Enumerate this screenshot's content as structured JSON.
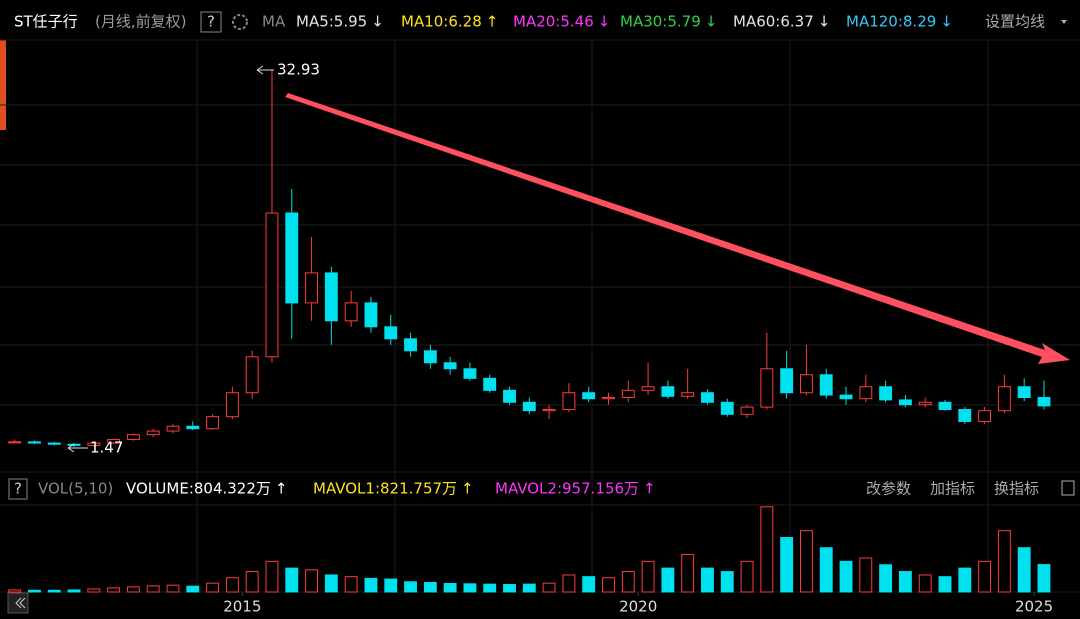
{
  "chart_data": {
    "type": "candlestick",
    "title": "ST任子行",
    "subtitle": "(月线,前复权)",
    "help": "?",
    "ma_label": "MA",
    "ma_legend": [
      {
        "label": "MA5:5.95",
        "arrow": "↓",
        "color": "#e6e6e6"
      },
      {
        "label": "MA10:6.28",
        "arrow": "↑",
        "color": "#ffe21f"
      },
      {
        "label": "MA20:5.46",
        "arrow": "↓",
        "color": "#ff35ff"
      },
      {
        "label": "MA30:5.79",
        "arrow": "↓",
        "color": "#2fd24a"
      },
      {
        "label": "MA60:6.37",
        "arrow": "↓",
        "color": "#e6e6e6"
      },
      {
        "label": "MA120:8.29",
        "arrow": "↓",
        "color": "#33c9f5"
      }
    ],
    "settings": "设置均线",
    "annotations": [
      "32.93",
      "1.47"
    ],
    "up_color": "#ff3b3b",
    "down_color": "#00e1f0",
    "x": [
      2012.125,
      2012.375,
      2012.625,
      2012.875,
      2013.125,
      2013.375,
      2013.625,
      2013.875,
      2014.125,
      2014.375,
      2014.625,
      2014.875,
      2015.125,
      2015.375,
      2015.625,
      2015.875,
      2016.125,
      2016.375,
      2016.625,
      2016.875,
      2017.125,
      2017.375,
      2017.625,
      2017.875,
      2018.125,
      2018.375,
      2018.625,
      2018.875,
      2019.125,
      2019.375,
      2019.625,
      2019.875,
      2020.125,
      2020.375,
      2020.625,
      2020.875,
      2021.125,
      2021.375,
      2021.625,
      2021.875,
      2022.125,
      2022.375,
      2022.625,
      2022.875,
      2023.125,
      2023.375,
      2023.625,
      2023.875,
      2024.125,
      2024.375,
      2024.625,
      2024.875,
      2025.125
    ],
    "open": [
      1.9,
      1.9,
      1.8,
      1.7,
      1.6,
      1.8,
      2.1,
      2.5,
      2.8,
      3.2,
      3.0,
      4.0,
      6.0,
      9.0,
      21.0,
      13.5,
      16.0,
      12.0,
      13.5,
      11.5,
      10.5,
      9.5,
      8.5,
      8.0,
      7.2,
      6.2,
      5.2,
      4.5,
      4.6,
      6.0,
      5.5,
      5.6,
      6.2,
      6.5,
      5.7,
      6.0,
      5.2,
      4.2,
      4.8,
      8.0,
      6.0,
      7.5,
      5.8,
      5.5,
      6.5,
      5.4,
      5.0,
      5.2,
      4.6,
      3.6,
      4.5,
      6.5,
      5.6
    ],
    "high": [
      2.1,
      2.0,
      1.9,
      1.8,
      1.9,
      2.2,
      2.6,
      3.0,
      3.4,
      3.6,
      4.2,
      6.5,
      9.5,
      32.93,
      23.0,
      19.0,
      16.5,
      14.5,
      14.0,
      12.5,
      11.0,
      10.0,
      9.0,
      8.5,
      7.5,
      6.5,
      5.6,
      5.0,
      6.8,
      6.5,
      6.0,
      7.0,
      8.5,
      7.0,
      8.0,
      6.3,
      5.5,
      5.0,
      11.0,
      9.5,
      10.0,
      8.0,
      6.5,
      7.5,
      7.0,
      5.8,
      5.6,
      5.4,
      4.8,
      4.8,
      7.5,
      7.2,
      7.0
    ],
    "low": [
      1.8,
      1.7,
      1.6,
      1.47,
      1.5,
      1.7,
      2.0,
      2.3,
      2.6,
      2.9,
      2.9,
      3.8,
      5.5,
      8.5,
      10.5,
      12.0,
      10.0,
      11.5,
      11.0,
      10.0,
      9.0,
      8.0,
      7.5,
      7.0,
      6.0,
      5.0,
      4.2,
      3.8,
      4.4,
      5.2,
      5.0,
      5.2,
      5.8,
      5.5,
      5.5,
      5.0,
      4.0,
      3.9,
      4.6,
      5.5,
      5.8,
      5.5,
      5.0,
      5.2,
      5.2,
      4.8,
      4.8,
      4.5,
      3.4,
      3.4,
      4.3,
      5.3,
      4.6
    ],
    "close": [
      1.9,
      1.8,
      1.7,
      1.6,
      1.8,
      2.1,
      2.5,
      2.8,
      3.2,
      3.0,
      4.0,
      6.0,
      9.0,
      21.0,
      13.5,
      16.0,
      12.0,
      13.5,
      11.5,
      10.5,
      9.5,
      8.5,
      8.0,
      7.2,
      6.2,
      5.2,
      4.5,
      4.6,
      6.0,
      5.5,
      5.6,
      6.2,
      6.5,
      5.7,
      6.0,
      5.2,
      4.2,
      4.8,
      8.0,
      6.0,
      7.5,
      5.8,
      5.5,
      6.5,
      5.4,
      5.0,
      5.2,
      4.6,
      3.6,
      4.5,
      6.5,
      5.6,
      4.9
    ],
    "volume": [
      60,
      50,
      50,
      60,
      90,
      120,
      150,
      180,
      200,
      170,
      260,
      420,
      600,
      900,
      700,
      650,
      500,
      450,
      400,
      380,
      300,
      280,
      250,
      240,
      230,
      220,
      230,
      260,
      500,
      450,
      420,
      600,
      900,
      700,
      1100,
      700,
      600,
      900,
      2500,
      1600,
      1800,
      1300,
      900,
      1000,
      800,
      600,
      500,
      450,
      700,
      900,
      1800,
      1300,
      804.322
    ],
    "xlim": [
      2011.94,
      2025.58
    ],
    "ylim": [
      -0.45,
      35.44
    ],
    "volume_ylim": [
      0,
      2700
    ],
    "xticks": [
      2015,
      2020,
      2025
    ],
    "volume_title": "VOL(5,10)",
    "volume_legend": [
      {
        "label": "VOLUME:804.322万",
        "arrow": "↑",
        "color": "#ffffff"
      },
      {
        "label": "MAVOL1:821.757万",
        "arrow": "↑",
        "color": "#ffe21f"
      },
      {
        "label": "MAVOL2:957.156万",
        "arrow": "↑",
        "color": "#ff35ff"
      }
    ],
    "buttons": [
      "改参数",
      "加指标",
      "换指标"
    ]
  }
}
